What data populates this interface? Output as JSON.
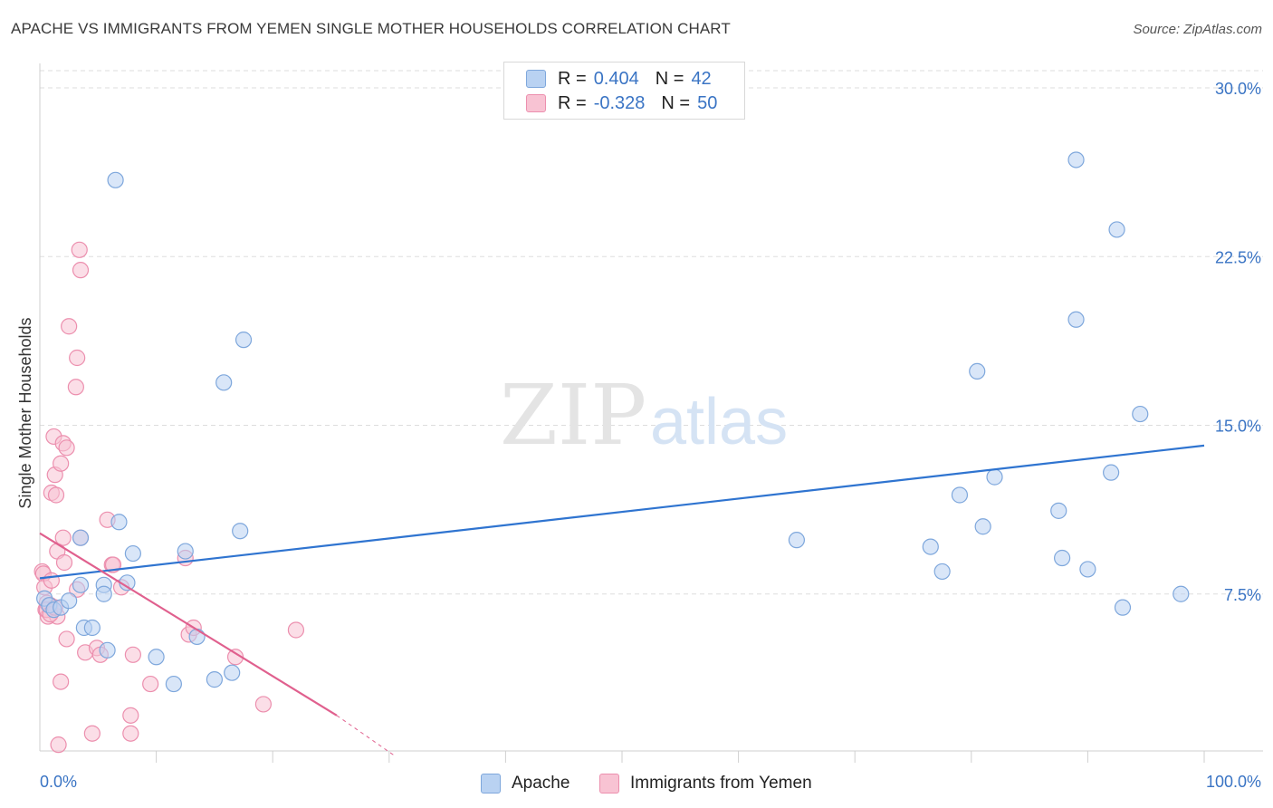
{
  "title": "APACHE VS IMMIGRANTS FROM YEMEN SINGLE MOTHER HOUSEHOLDS CORRELATION CHART",
  "source": "Source: ZipAtlas.com",
  "watermark": {
    "zip": "ZIP",
    "atlas": "atlas"
  },
  "colors": {
    "apache_fill": "#b9d2f2",
    "apache_stroke": "#7ea7dc",
    "apache_line": "#2f74d0",
    "yemen_fill": "#f8c3d3",
    "yemen_stroke": "#ec8fae",
    "yemen_line": "#e0608e",
    "axis_text": "#3a74c4",
    "grid": "#dddddd"
  },
  "legend": {
    "apache": {
      "r_label": "R = ",
      "r_value": "0.404",
      "n_label": "N = ",
      "n_value": "42"
    },
    "yemen": {
      "r_label": "R = ",
      "r_value": "-0.328",
      "n_label": "N = ",
      "n_value": "50"
    }
  },
  "chart_data": {
    "type": "scatter",
    "title": "APACHE VS IMMIGRANTS FROM YEMEN SINGLE MOTHER HOUSEHOLDS CORRELATION CHART",
    "xlabel": "",
    "ylabel": "Single Mother Households",
    "xlim": [
      0,
      100
    ],
    "ylim": [
      0,
      31
    ],
    "x_tick_labels": [
      "0.0%",
      "100.0%"
    ],
    "y_ticks": [
      7.5,
      15.0,
      22.5,
      30.0
    ],
    "y_tick_labels": [
      "7.5%",
      "15.0%",
      "22.5%",
      "30.0%"
    ],
    "grid": true,
    "series": [
      {
        "name": "Apache",
        "trend": {
          "x": [
            0,
            100
          ],
          "y": [
            8.2,
            14.1
          ]
        },
        "points": [
          [
            0.4,
            7.3
          ],
          [
            0.8,
            7.0
          ],
          [
            1.2,
            6.8
          ],
          [
            1.8,
            6.9
          ],
          [
            2.5,
            7.2
          ],
          [
            3.5,
            10.0
          ],
          [
            3.5,
            7.9
          ],
          [
            3.8,
            6.0
          ],
          [
            4.5,
            6.0
          ],
          [
            5.5,
            7.9
          ],
          [
            5.5,
            7.5
          ],
          [
            5.8,
            5.0
          ],
          [
            6.5,
            25.9
          ],
          [
            6.8,
            10.7
          ],
          [
            7.5,
            8.0
          ],
          [
            8.0,
            9.3
          ],
          [
            10.0,
            4.7
          ],
          [
            11.5,
            3.5
          ],
          [
            12.5,
            9.4
          ],
          [
            13.5,
            5.6
          ],
          [
            15.0,
            3.7
          ],
          [
            15.8,
            16.9
          ],
          [
            16.5,
            4.0
          ],
          [
            17.2,
            10.3
          ],
          [
            17.5,
            18.8
          ],
          [
            65.0,
            9.9
          ],
          [
            76.5,
            9.6
          ],
          [
            77.5,
            8.5
          ],
          [
            79.0,
            11.9
          ],
          [
            80.5,
            17.4
          ],
          [
            81.0,
            10.5
          ],
          [
            82.0,
            12.7
          ],
          [
            87.5,
            11.2
          ],
          [
            87.8,
            9.1
          ],
          [
            89.0,
            19.7
          ],
          [
            89.0,
            26.8
          ],
          [
            90.0,
            8.6
          ],
          [
            92.0,
            12.9
          ],
          [
            92.5,
            23.7
          ],
          [
            93.0,
            6.9
          ],
          [
            94.5,
            15.5
          ],
          [
            98.0,
            7.5
          ]
        ]
      },
      {
        "name": "Immigrants from Yemen",
        "trend": {
          "x": [
            0,
            25.5
          ],
          "y": [
            10.2,
            2.1
          ]
        },
        "trend_dashed": {
          "x": [
            25.5,
            30.5
          ],
          "y": [
            2.1,
            0.3
          ]
        },
        "points": [
          [
            0.2,
            8.5
          ],
          [
            0.3,
            8.4
          ],
          [
            0.4,
            7.8
          ],
          [
            0.5,
            6.8
          ],
          [
            0.6,
            7.1
          ],
          [
            0.7,
            6.5
          ],
          [
            0.9,
            7.0
          ],
          [
            1.0,
            12.0
          ],
          [
            1.0,
            8.1
          ],
          [
            1.2,
            14.5
          ],
          [
            1.3,
            12.8
          ],
          [
            1.4,
            11.9
          ],
          [
            1.5,
            9.4
          ],
          [
            1.5,
            6.5
          ],
          [
            1.6,
            0.8
          ],
          [
            1.8,
            13.3
          ],
          [
            1.8,
            3.6
          ],
          [
            2.0,
            14.2
          ],
          [
            2.0,
            10.0
          ],
          [
            2.1,
            8.9
          ],
          [
            2.3,
            14.0
          ],
          [
            2.3,
            5.5
          ],
          [
            2.5,
            19.4
          ],
          [
            3.1,
            16.7
          ],
          [
            3.2,
            18.0
          ],
          [
            3.2,
            7.7
          ],
          [
            3.4,
            22.8
          ],
          [
            3.5,
            21.9
          ],
          [
            3.5,
            10.0
          ],
          [
            3.9,
            4.9
          ],
          [
            4.5,
            1.3
          ],
          [
            4.9,
            5.1
          ],
          [
            5.2,
            4.8
          ],
          [
            5.8,
            10.8
          ],
          [
            6.2,
            8.8
          ],
          [
            6.3,
            8.8
          ],
          [
            7.0,
            7.8
          ],
          [
            7.8,
            2.1
          ],
          [
            7.8,
            1.3
          ],
          [
            8.0,
            4.8
          ],
          [
            9.5,
            3.5
          ],
          [
            12.5,
            9.1
          ],
          [
            12.8,
            5.7
          ],
          [
            13.2,
            6.0
          ],
          [
            16.8,
            4.7
          ],
          [
            19.2,
            2.6
          ],
          [
            22.0,
            5.9
          ],
          [
            0.6,
            6.8
          ],
          [
            0.9,
            6.6
          ],
          [
            1.3,
            6.9
          ]
        ]
      }
    ]
  },
  "bottom_legend": {
    "apache": "Apache",
    "yemen": "Immigrants from Yemen"
  }
}
